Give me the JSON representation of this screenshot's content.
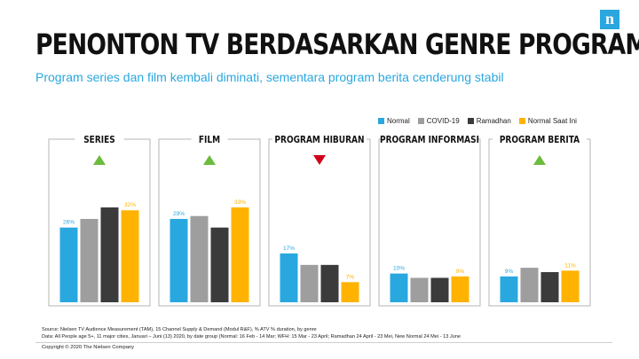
{
  "brand": {
    "logo_letter": "n",
    "color": "#2aa7df"
  },
  "header": {
    "title": "PENONTON TV BERDASARKAN GENRE PROGRAM",
    "subtitle": "Program series dan film kembali diminati, sementara program berita cenderung stabil"
  },
  "legend": [
    {
      "name": "Normal",
      "color": "#29a8e0"
    },
    {
      "name": "COVID-19",
      "color": "#9e9e9e"
    },
    {
      "name": "Ramadhan",
      "color": "#3b3b3b"
    },
    {
      "name": "Normal Saat Ini",
      "color": "#ffb300"
    }
  ],
  "chart_data": {
    "type": "bar",
    "series_names": [
      "Normal",
      "COVID-19",
      "Ramadhan",
      "Normal Saat Ini"
    ],
    "trend_colors": {
      "up": "#6cbb3c",
      "down": "#d0021b"
    },
    "panels": [
      {
        "title": "SERIES",
        "trend": "up",
        "values": [
          26,
          29,
          33,
          32
        ],
        "labels": [
          "26%",
          "",
          "",
          "32%"
        ]
      },
      {
        "title": "FILM",
        "trend": "up",
        "values": [
          29,
          30,
          26,
          33
        ],
        "labels": [
          "29%",
          "",
          "",
          "33%"
        ]
      },
      {
        "title": "PROGRAM HIBURAN",
        "trend": "down",
        "values": [
          17,
          13,
          13,
          7
        ],
        "labels": [
          "17%",
          "",
          "",
          "7%"
        ]
      },
      {
        "title": "PROGRAM INFORMASI",
        "trend": "flat",
        "values": [
          10,
          8.5,
          8.5,
          9
        ],
        "labels": [
          "10%",
          "",
          "",
          "9%"
        ]
      },
      {
        "title": "PROGRAM BERITA",
        "trend": "up",
        "values": [
          9,
          12,
          10.5,
          11
        ],
        "labels": [
          "9%",
          "",
          "",
          "11%"
        ]
      }
    ]
  },
  "footer": {
    "source_line1": "Source: Nielsen TV Audience Measurement (TAM), 15 Channel Supply & Demand (Modul R&F), % ATV % duration, by genre",
    "source_line2": "Data: All People age 5+, 11 major cities, Januari – Juni (13) 2020, by date group (Normal: 16 Feb - 14 Mar; WFH: 15 Mar - 23 April; Ramadhan 24 April - 23 Mei, New Normal 24 Mei - 13 June",
    "copyright": "Copyright © 2020 The Nielsen Company"
  }
}
